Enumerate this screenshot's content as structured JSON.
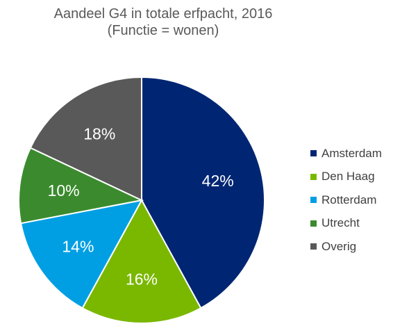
{
  "chart_data": {
    "type": "pie",
    "title": "Aandeel G4 in totale erfpacht, 2016",
    "subtitle": "(Functie = wonen)",
    "categories": [
      "Amsterdam",
      "Den Haag",
      "Rotterdam",
      "Utrecht",
      "Overig"
    ],
    "values": [
      42,
      16,
      14,
      10,
      18
    ],
    "labels": [
      "42%",
      "16%",
      "14%",
      "10%",
      "18%"
    ],
    "colors": [
      "#002673",
      "#7AB800",
      "#009FE3",
      "#3B8B2E",
      "#595959"
    ],
    "label_color": "#ffffff",
    "legend_position": "right"
  }
}
